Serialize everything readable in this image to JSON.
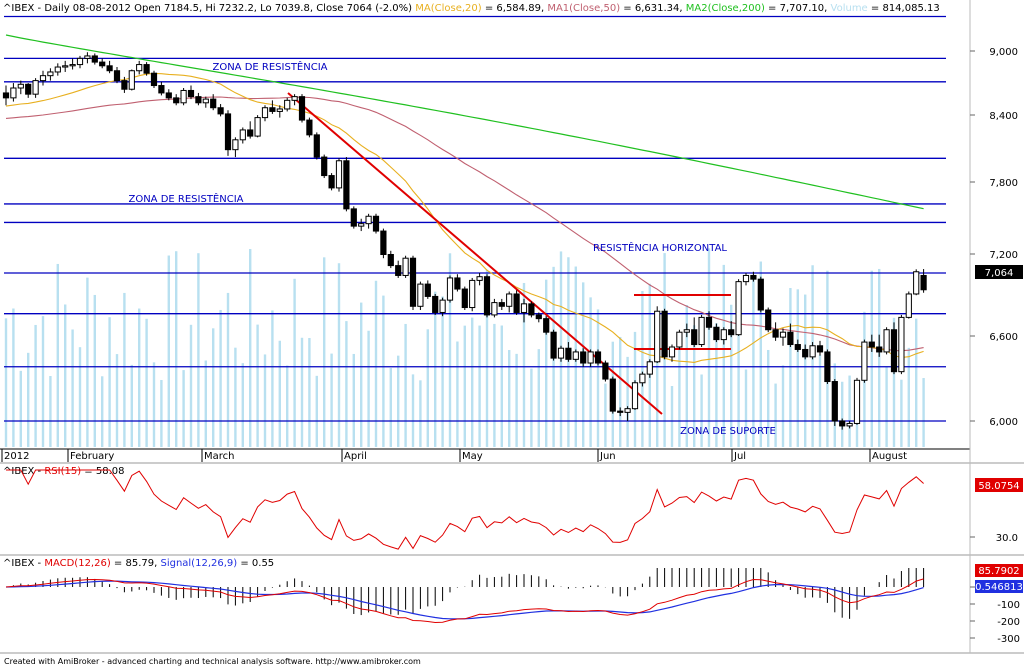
{
  "header": {
    "symbol": "^IBEX",
    "period": "Daily",
    "date": "08-08-2012",
    "ohlc_text": "^IBEX - Daily 08-08-2012 Open 7184.5, Hi 7232.2, Lo 7039.8, Close 7064 (-2.0%)",
    "ma_items": [
      {
        "label": "MA(Close,20)",
        "value": " = 6,584.89,",
        "color": "#e8b020"
      },
      {
        "label": "MA1(Close,50)",
        "value": " = 6,631.34,",
        "color": "#c06070"
      },
      {
        "label": "MA2(Close,200)",
        "value": " = 7,707.10,",
        "color": "#20c020"
      },
      {
        "label": "Volume",
        "value": " = 814,085.13",
        "color": "#b8e0f0"
      }
    ]
  },
  "annotations": {
    "zona_resist_top": "ZONA DE RESISTÊNCIA",
    "zona_resist_mid": "ZONA DE RESISTÊNCIA",
    "resist_horizontal": "RESISTÊNCIA HORIZONTAL",
    "zona_suporte": "ZONA DE SUPORTE"
  },
  "price_axis": {
    "ticks": [
      "9,000",
      "8,400",
      "7,800",
      "7,200",
      "6,600",
      "6,000"
    ],
    "last_price_label": "7,064"
  },
  "x_axis": {
    "labels": [
      "2012",
      "February",
      "March",
      "April",
      "May",
      "Jun",
      "Jul",
      "August"
    ]
  },
  "rsi_panel": {
    "title_prefix": "^IBEX - ",
    "title_ind": "RSI(15)",
    "title_value": " = 58.08",
    "ticks": [
      "30.0"
    ],
    "last_label": "58.0754"
  },
  "macd_panel": {
    "title_prefix": "^IBEX - ",
    "title_macd": "MACD(12,26)",
    "title_macd_value": " = 85.79, ",
    "title_signal": "Signal(12,26,9)",
    "title_signal_value": " = 0.55",
    "ticks": [
      "0",
      "-100",
      "-200",
      "-300"
    ],
    "macd_label": "85.7902",
    "signal_label": "0.546813"
  },
  "footer": "Created with AmiBroker - advanced charting and technical analysis software. http://www.amibroker.com",
  "colors": {
    "up": "#ffffff",
    "down": "#000000",
    "ma20": "#e8b020",
    "ma50": "#c06070",
    "ma200": "#20c020",
    "volume": "#b8e0f0",
    "hline": "#0000c0",
    "trend": "#e00000",
    "rsi": "#e00000",
    "macd": "#e00000",
    "signal": "#2030e0"
  },
  "chart_data": {
    "type": "candlestick",
    "title": "^IBEX - Daily",
    "y_range": [
      5800,
      9400
    ],
    "horizontal_levels": [
      9280,
      8940,
      8750,
      8130,
      7760,
      7610,
      7200,
      6870,
      6440,
      6000
    ],
    "candles": [
      [
        8660,
        8720,
        8560,
        8620
      ],
      [
        8620,
        8740,
        8590,
        8700
      ],
      [
        8700,
        8760,
        8650,
        8730
      ],
      [
        8730,
        8740,
        8620,
        8650
      ],
      [
        8650,
        8780,
        8620,
        8760
      ],
      [
        8760,
        8840,
        8720,
        8800
      ],
      [
        8800,
        8860,
        8760,
        8830
      ],
      [
        8830,
        8900,
        8800,
        8870
      ],
      [
        8870,
        8920,
        8830,
        8880
      ],
      [
        8880,
        8940,
        8850,
        8890
      ],
      [
        8890,
        8960,
        8860,
        8940
      ],
      [
        8940,
        8990,
        8900,
        8960
      ],
      [
        8960,
        8980,
        8890,
        8910
      ],
      [
        8910,
        8940,
        8860,
        8880
      ],
      [
        8880,
        8920,
        8820,
        8840
      ],
      [
        8840,
        8870,
        8740,
        8760
      ],
      [
        8760,
        8790,
        8660,
        8690
      ],
      [
        8690,
        8850,
        8680,
        8840
      ],
      [
        8840,
        8920,
        8810,
        8890
      ],
      [
        8890,
        8910,
        8800,
        8820
      ],
      [
        8820,
        8840,
        8700,
        8720
      ],
      [
        8720,
        8750,
        8640,
        8660
      ],
      [
        8660,
        8690,
        8600,
        8620
      ],
      [
        8620,
        8650,
        8560,
        8580
      ],
      [
        8580,
        8700,
        8560,
        8680
      ],
      [
        8680,
        8720,
        8610,
        8630
      ],
      [
        8630,
        8660,
        8560,
        8580
      ],
      [
        8580,
        8630,
        8540,
        8610
      ],
      [
        8610,
        8650,
        8520,
        8540
      ],
      [
        8540,
        8570,
        8470,
        8490
      ],
      [
        8490,
        8520,
        8150,
        8200
      ],
      [
        8200,
        8300,
        8140,
        8280
      ],
      [
        8280,
        8380,
        8250,
        8360
      ],
      [
        8360,
        8430,
        8290,
        8310
      ],
      [
        8310,
        8480,
        8300,
        8460
      ],
      [
        8460,
        8560,
        8430,
        8540
      ],
      [
        8540,
        8600,
        8490,
        8510
      ],
      [
        8510,
        8560,
        8460,
        8530
      ],
      [
        8530,
        8620,
        8510,
        8600
      ],
      [
        8600,
        8650,
        8560,
        8630
      ],
      [
        8630,
        8650,
        8420,
        8440
      ],
      [
        8440,
        8460,
        8300,
        8320
      ],
      [
        8320,
        8340,
        8120,
        8140
      ],
      [
        8140,
        8160,
        7970,
        7990
      ],
      [
        7990,
        8010,
        7870,
        7890
      ],
      [
        7890,
        8130,
        7860,
        8110
      ],
      [
        8110,
        8140,
        7700,
        7720
      ],
      [
        7720,
        7740,
        7560,
        7580
      ],
      [
        7580,
        7640,
        7540,
        7600
      ],
      [
        7600,
        7680,
        7560,
        7660
      ],
      [
        7660,
        7680,
        7520,
        7540
      ],
      [
        7540,
        7560,
        7320,
        7350
      ],
      [
        7350,
        7380,
        7240,
        7260
      ],
      [
        7260,
        7300,
        7160,
        7180
      ],
      [
        7180,
        7340,
        7160,
        7320
      ],
      [
        7320,
        7340,
        6900,
        6930
      ],
      [
        6930,
        7130,
        6900,
        7110
      ],
      [
        7110,
        7140,
        6990,
        7010
      ],
      [
        7010,
        7030,
        6860,
        6880
      ],
      [
        6880,
        7000,
        6850,
        6980
      ],
      [
        6980,
        7180,
        6960,
        7160
      ],
      [
        7160,
        7190,
        7050,
        7070
      ],
      [
        7070,
        7090,
        6900,
        6920
      ],
      [
        6920,
        7160,
        6890,
        7140
      ],
      [
        7140,
        7200,
        7100,
        7170
      ],
      [
        7170,
        7190,
        6840,
        6860
      ],
      [
        6860,
        6990,
        6840,
        6960
      ],
      [
        6960,
        6990,
        6900,
        6930
      ],
      [
        6930,
        7050,
        6880,
        7030
      ],
      [
        7030,
        7060,
        6860,
        6880
      ],
      [
        6880,
        6990,
        6800,
        6950
      ],
      [
        6950,
        6970,
        6840,
        6860
      ],
      [
        6860,
        6880,
        6800,
        6830
      ],
      [
        6830,
        6850,
        6700,
        6720
      ],
      [
        6720,
        6740,
        6490,
        6510
      ],
      [
        6510,
        6610,
        6480,
        6590
      ],
      [
        6590,
        6640,
        6480,
        6500
      ],
      [
        6500,
        6580,
        6480,
        6560
      ],
      [
        6560,
        6590,
        6440,
        6470
      ],
      [
        6470,
        6580,
        6440,
        6560
      ],
      [
        6560,
        6580,
        6450,
        6470
      ],
      [
        6470,
        6490,
        6320,
        6340
      ],
      [
        6340,
        6360,
        6060,
        6080
      ],
      [
        6080,
        6110,
        6040,
        6070
      ],
      [
        6070,
        6120,
        6000,
        6100
      ],
      [
        6100,
        6330,
        6090,
        6310
      ],
      [
        6310,
        6400,
        6280,
        6380
      ],
      [
        6380,
        6500,
        6350,
        6480
      ],
      [
        6480,
        6930,
        6470,
        6890
      ],
      [
        6890,
        6910,
        6500,
        6520
      ],
      [
        6520,
        6620,
        6480,
        6600
      ],
      [
        6600,
        6740,
        6580,
        6720
      ],
      [
        6720,
        6790,
        6680,
        6740
      ],
      [
        6740,
        6840,
        6600,
        6620
      ],
      [
        6620,
        6860,
        6600,
        6840
      ],
      [
        6840,
        6890,
        6740,
        6760
      ],
      [
        6760,
        6790,
        6640,
        6660
      ],
      [
        6660,
        6760,
        6620,
        6740
      ],
      [
        6740,
        6810,
        6680,
        6700
      ],
      [
        6700,
        7150,
        6690,
        7130
      ],
      [
        7130,
        7200,
        7100,
        7180
      ],
      [
        7180,
        7210,
        7130,
        7150
      ],
      [
        7150,
        7170,
        6880,
        6900
      ],
      [
        6900,
        6920,
        6720,
        6740
      ],
      [
        6740,
        6800,
        6650,
        6680
      ],
      [
        6680,
        6750,
        6610,
        6720
      ],
      [
        6720,
        6790,
        6600,
        6620
      ],
      [
        6620,
        6660,
        6560,
        6580
      ],
      [
        6580,
        6620,
        6500,
        6520
      ],
      [
        6520,
        6640,
        6500,
        6610
      ],
      [
        6610,
        6650,
        6530,
        6560
      ],
      [
        6560,
        6580,
        6300,
        6320
      ],
      [
        6320,
        6340,
        5960,
        6000
      ],
      [
        6000,
        6020,
        5930,
        5960
      ],
      [
        5960,
        6000,
        5940,
        5980
      ],
      [
        5980,
        6350,
        5970,
        6330
      ],
      [
        6330,
        6660,
        6310,
        6640
      ],
      [
        6640,
        6700,
        6560,
        6600
      ],
      [
        6600,
        6700,
        6520,
        6560
      ],
      [
        6560,
        6760,
        6540,
        6740
      ],
      [
        6740,
        6800,
        6380,
        6400
      ],
      [
        6400,
        6860,
        6380,
        6840
      ],
      [
        6840,
        7050,
        6830,
        7030
      ],
      [
        7030,
        7230,
        7020,
        7210
      ],
      [
        7180,
        7232,
        7040,
        7064
      ]
    ]
  }
}
